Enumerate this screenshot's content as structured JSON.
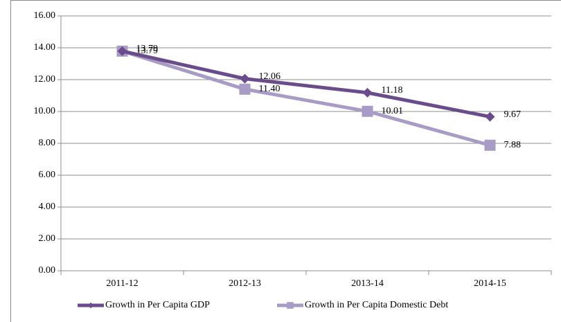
{
  "chart_data": {
    "type": "line",
    "categories": [
      "2011-12",
      "2012-13",
      "2013-14",
      "2014-15"
    ],
    "series": [
      {
        "name": "Growth in Per Capita GDP",
        "color": "#6a4c8c",
        "marker": "diamond",
        "values": [
          13.79,
          12.06,
          11.18,
          9.67
        ]
      },
      {
        "name": "Growth in Per Capita Domestic Debt",
        "color": "#a89bc5",
        "marker": "square",
        "values": [
          13.79,
          11.4,
          10.01,
          7.88
        ],
        "value_labels": [
          "13.79",
          "11.40",
          "10.01",
          "7.88"
        ]
      }
    ],
    "ylim": [
      0,
      16
    ],
    "yticks": [
      {
        "value": 0,
        "label": "0.00"
      },
      {
        "value": 2,
        "label": "2.00"
      },
      {
        "value": 4,
        "label": "4.00"
      },
      {
        "value": 6,
        "label": "6.00"
      },
      {
        "value": 8,
        "label": "8.00"
      },
      {
        "value": 10,
        "label": "10.00"
      },
      {
        "value": 12,
        "label": "12.00"
      },
      {
        "value": 14,
        "label": "14.00"
      },
      {
        "value": 16,
        "label": "16.00"
      }
    ],
    "grid": true,
    "legend": "bottom"
  }
}
